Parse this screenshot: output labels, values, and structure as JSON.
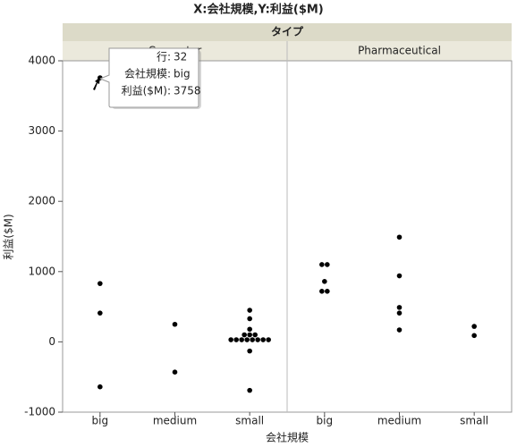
{
  "chart_data": {
    "type": "scatter",
    "title": "X:会社規模,Y:利益($M)",
    "facet_title": "タイプ",
    "xlabel": "会社規模",
    "ylabel": "利益($M)",
    "categories": [
      "big",
      "medium",
      "small"
    ],
    "ylim": [
      -1000,
      4000
    ],
    "yticks": [
      -1000,
      0,
      1000,
      2000,
      3000,
      4000
    ],
    "color": "#000000",
    "panels": [
      {
        "name": "Computer",
        "x": [
          "big",
          "big",
          "big",
          "big",
          "medium",
          "medium",
          "small",
          "small",
          "small",
          "small",
          "small",
          "small",
          "small",
          "small",
          "small",
          "small",
          "small",
          "small",
          "small",
          "small",
          "small",
          "small"
        ],
        "values": [
          3758,
          830,
          410,
          -640,
          250,
          -430,
          450,
          330,
          180,
          100,
          100,
          100,
          30,
          30,
          30,
          30,
          30,
          30,
          30,
          30,
          -130,
          -690
        ]
      },
      {
        "name": "Pharmaceutical",
        "x": [
          "big",
          "big",
          "big",
          "big",
          "big",
          "medium",
          "medium",
          "medium",
          "medium",
          "medium",
          "small",
          "small"
        ],
        "values": [
          1100,
          1100,
          860,
          720,
          720,
          1490,
          940,
          490,
          410,
          170,
          220,
          90
        ]
      }
    ],
    "tooltip": [
      {
        "label": "行:",
        "value": 32
      },
      {
        "label": "会社規模:",
        "value": "big"
      },
      {
        "label": "利益($M):",
        "value": 3758
      }
    ]
  }
}
